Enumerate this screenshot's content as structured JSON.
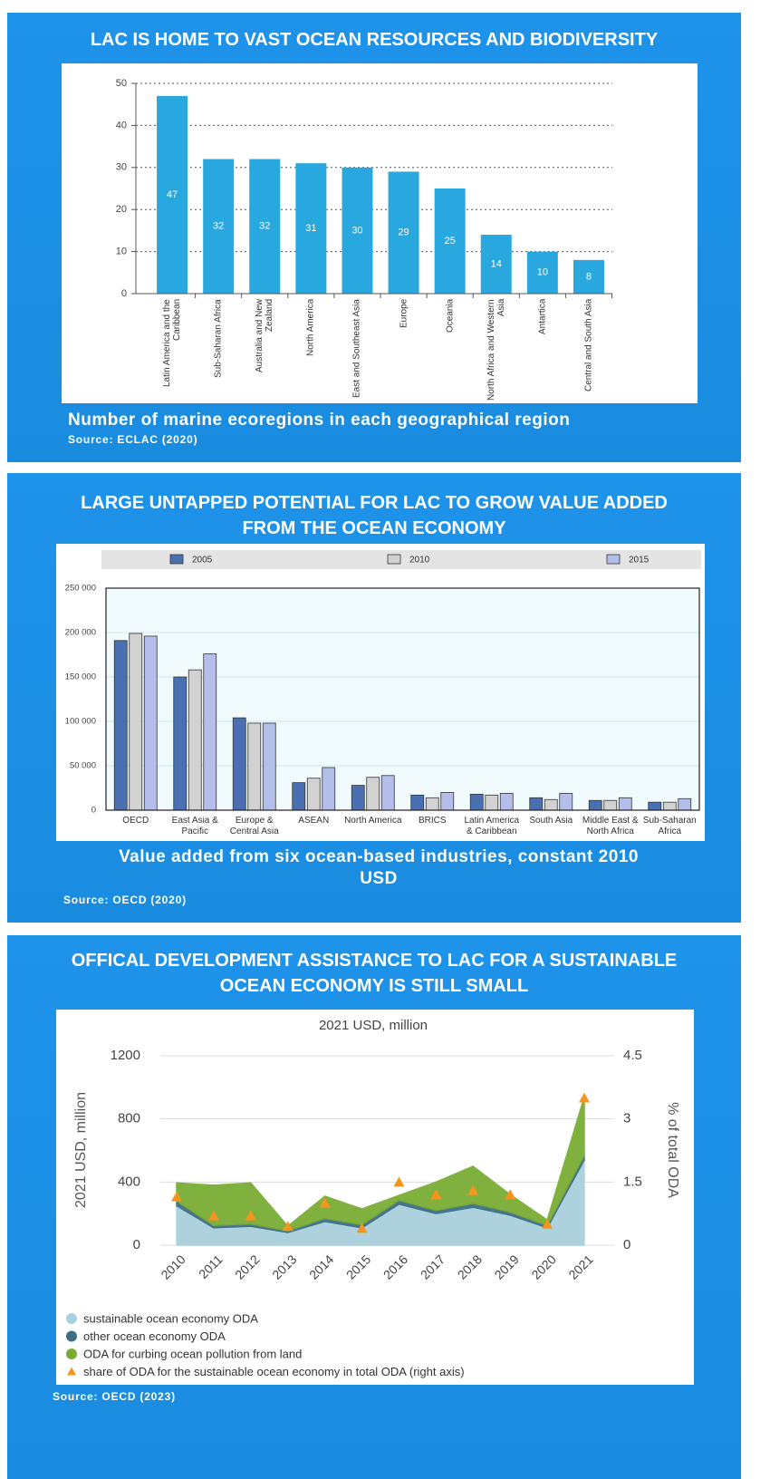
{
  "chart_data": [
    {
      "type": "bar",
      "title": "LAC IS HOME TO VAST OCEAN RESOURCES AND BIODIVERSITY",
      "caption": "Number of marine ecoregions in each geographical region",
      "source": "Source: ECLAC (2020)",
      "categories": [
        "Latin America and the Caribbean",
        "Sub-Saharan Africa",
        "Australia and New Zealand",
        "North America",
        "East and Southeast Asia",
        "Europe",
        "Oceania",
        "North Africa and Western Asia",
        "Antartica",
        "Central and South Asia"
      ],
      "values": [
        47,
        32,
        32,
        31,
        30,
        29,
        25,
        14,
        10,
        8
      ],
      "color": "#29a8e0",
      "ylim": [
        0,
        50
      ],
      "yticks": [
        0,
        10,
        20,
        30,
        40,
        50
      ],
      "grid": true
    },
    {
      "type": "bar",
      "title": "LARGE UNTAPPED POTENTIAL FOR LAC TO GROW VALUE ADDED FROM THE OCEAN ECONOMY",
      "caption": "Value added from six ocean-based industries, constant 2010 USD",
      "source": "Source: OECD (2020)",
      "categories": [
        "OECD",
        "East Asia & Pacific",
        "Europe & Central Asia",
        "ASEAN",
        "North America",
        "BRICS",
        "Latin America & Caribbean",
        "South Asia",
        "Middle East & North Africa",
        "Sub-Saharan Africa"
      ],
      "series": [
        {
          "name": "2005",
          "color": "#4a70b2",
          "values": [
            191000,
            150000,
            104000,
            31000,
            28000,
            17000,
            18000,
            14000,
            11000,
            9000
          ]
        },
        {
          "name": "2010",
          "color": "#d2d2d2",
          "values": [
            199000,
            158000,
            98000,
            36000,
            37000,
            14000,
            17000,
            12000,
            11000,
            9000
          ]
        },
        {
          "name": "2015",
          "color": "#b3bfea",
          "values": [
            196000,
            176000,
            98000,
            48000,
            39000,
            20000,
            19000,
            19000,
            14000,
            13000
          ]
        }
      ],
      "ylim": [
        0,
        250000
      ],
      "yticks": [
        0,
        {
          "value": 50000,
          "label": "50 000"
        },
        {
          "value": 100000,
          "label": "100 000"
        },
        {
          "value": 150000,
          "label": "150 000"
        },
        {
          "value": 200000,
          "label": "200 000"
        },
        {
          "value": 250000,
          "label": "250 000"
        }
      ],
      "grid": true,
      "legend": "top"
    },
    {
      "type": "area",
      "title": "OFFICAL DEVELOPMENT ASSISTANCE TO LAC FOR A SUSTAINABLE OCEAN ECONOMY IS STILL SMALL",
      "subtitle": "2021 USD, million",
      "source": "Source: OECD (2023)",
      "ylabel": "2021 USD, million",
      "y2label": "% of total ODA",
      "x": [
        2010,
        2011,
        2012,
        2013,
        2014,
        2015,
        2016,
        2017,
        2018,
        2019,
        2020,
        2021
      ],
      "xlim": [
        2010,
        2021
      ],
      "series": [
        {
          "name": "sustainable ocean economy ODA",
          "type": "area",
          "color": "#a9d0dd",
          "values": [
            250,
            110,
            120,
            80,
            150,
            110,
            260,
            200,
            240,
            190,
            110,
            540
          ]
        },
        {
          "name": "other ocean economy ODA",
          "type": "area",
          "color": "#3e6f86",
          "values": [
            30,
            15,
            15,
            10,
            20,
            20,
            25,
            20,
            25,
            20,
            15,
            30
          ]
        },
        {
          "name": "ODA for curbing ocean pollution from land",
          "type": "area",
          "color": "#7aac34",
          "values": [
            115,
            255,
            260,
            30,
            140,
            100,
            30,
            180,
            235,
            110,
            35,
            370
          ]
        },
        {
          "name": "share of ODA for the sustainable ocean economy in total ODA (right axis)",
          "type": "scatter",
          "marker": "triangle",
          "axis": "y2",
          "color": "#f7941d",
          "values": [
            1.15,
            0.7,
            0.7,
            0.45,
            1.0,
            0.4,
            1.5,
            1.2,
            1.3,
            1.2,
            0.5,
            3.5
          ]
        }
      ],
      "ylim": [
        0,
        1200
      ],
      "yticks": [
        0,
        400,
        800,
        1200
      ],
      "y2lim": [
        0,
        4.5
      ],
      "y2ticks": [
        0,
        1.5,
        3,
        4.5
      ],
      "grid": true,
      "legend": "bottom-left"
    }
  ]
}
